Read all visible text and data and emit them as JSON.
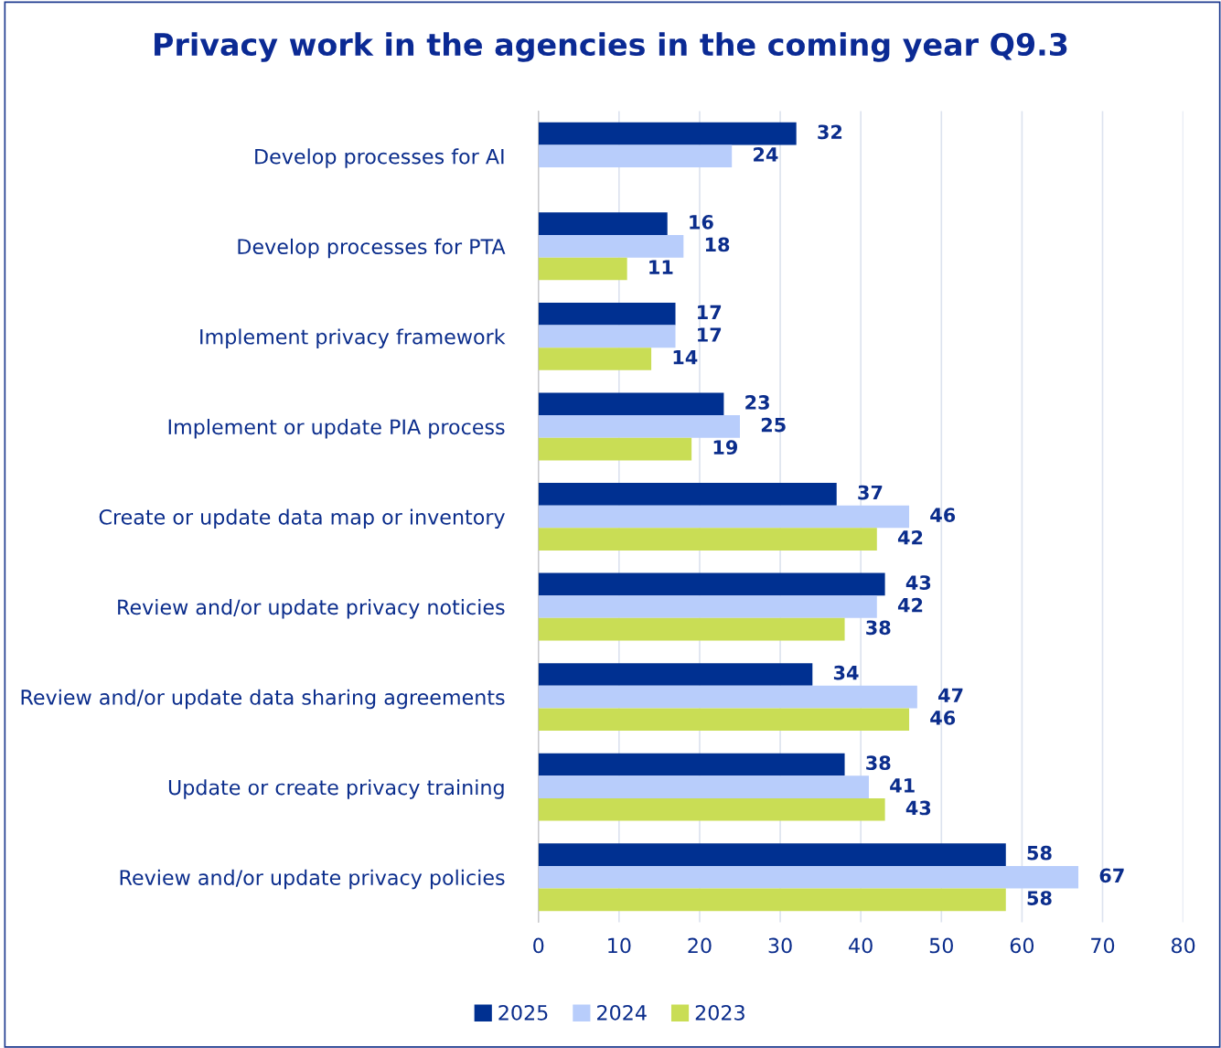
{
  "chart_data": {
    "type": "bar",
    "orientation": "horizontal",
    "title": "Privacy work in the agencies in the coming year Q9.3",
    "categories": [
      "Develop processes for AI",
      "Develop processes for PTA",
      "Implement privacy framework",
      "Implement or update PIA process",
      "Create or update data map or inventory",
      "Review and/or update privacy noticies",
      "Review and/or update data sharing agreements",
      "Update or create privacy training",
      "Review and/or update privacy policies"
    ],
    "series": [
      {
        "name": "2025",
        "color": "#003091",
        "values": [
          32,
          16,
          17,
          23,
          37,
          43,
          34,
          38,
          58
        ]
      },
      {
        "name": "2024",
        "color": "#b8cdfb",
        "values": [
          24,
          18,
          17,
          25,
          46,
          42,
          47,
          41,
          67
        ]
      },
      {
        "name": "2023",
        "color": "#c9dd55",
        "values": [
          null,
          11,
          14,
          19,
          42,
          38,
          46,
          43,
          58
        ]
      }
    ],
    "xlim": [
      0,
      80
    ],
    "xticks": [
      0,
      10,
      20,
      30,
      40,
      50,
      60,
      70,
      80
    ],
    "grid": "x",
    "legend": "bottom",
    "data_labels": true
  }
}
